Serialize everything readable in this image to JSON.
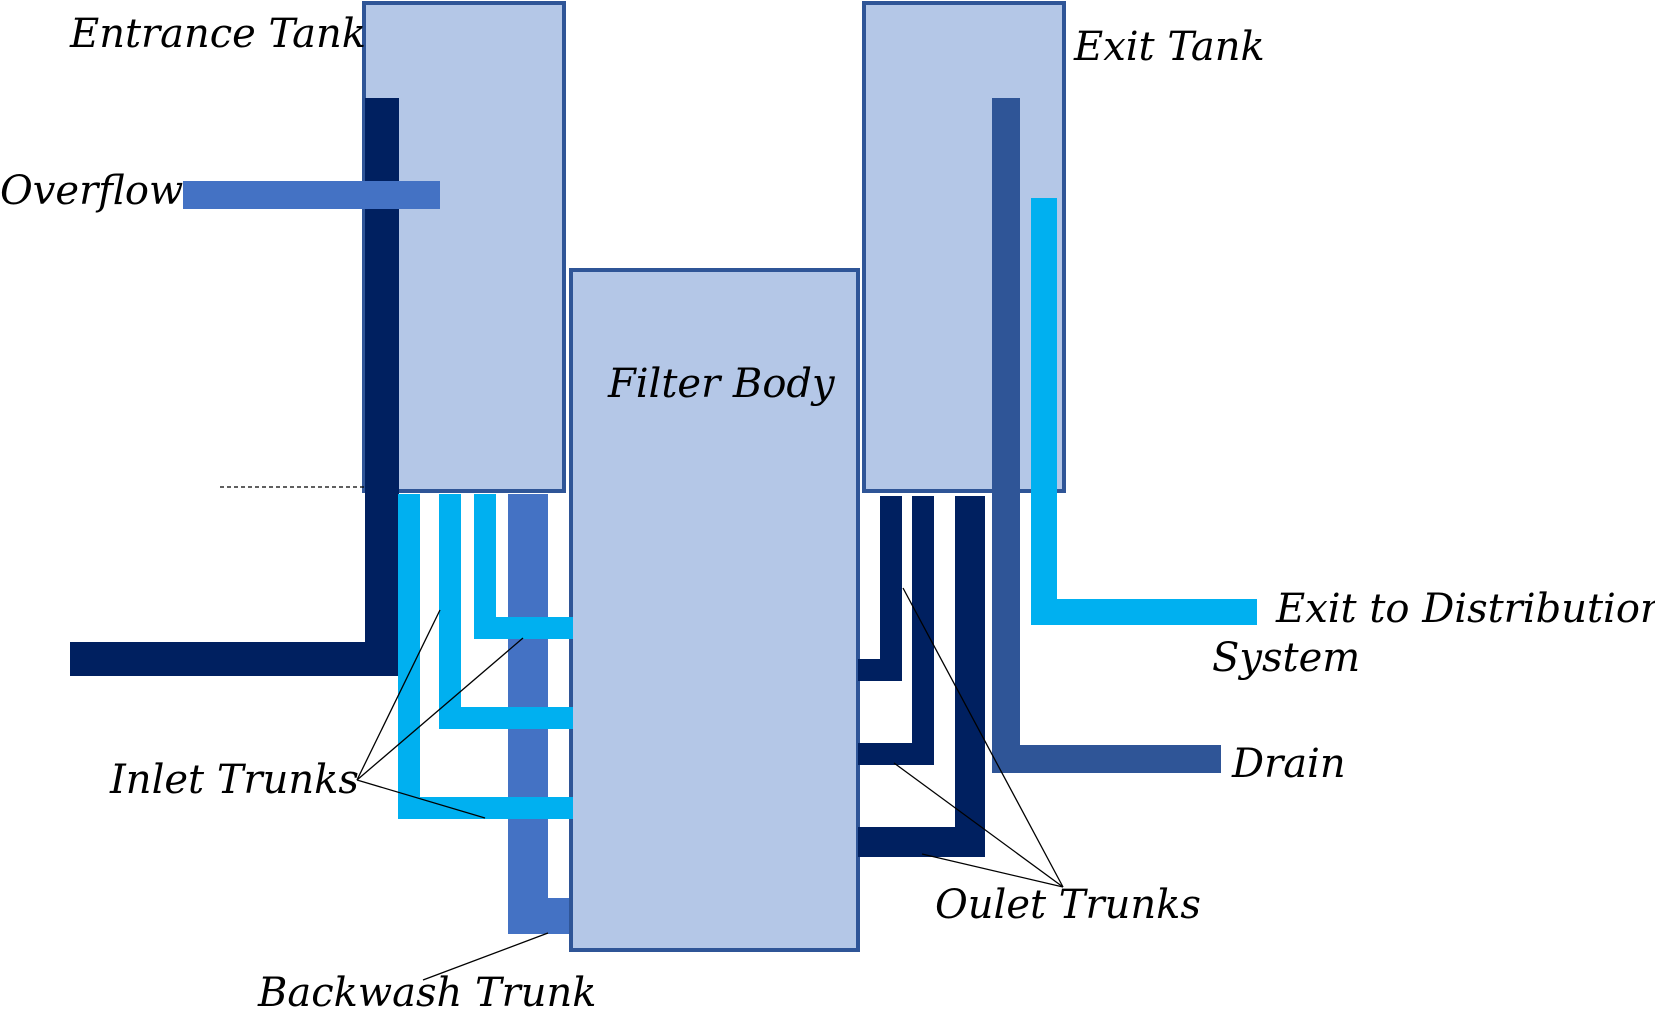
{
  "diagram": {
    "labels": {
      "entrance_tank": "Entrance Tank",
      "exit_tank": "Exit Tank",
      "filter_body": "Filter Body",
      "overflow": "Overflow",
      "inlet_trunks": "Inlet Trunks",
      "backwash_trunk": "Backwash Trunk",
      "exit_to_distribution_line1": "Exit to Distribution",
      "exit_to_distribution_line2": "System",
      "drain": "Drain",
      "outlet_trunks": "Oulet Trunks"
    },
    "colors": {
      "tank_fill": "#b4c7e7",
      "tank_border": "#2f5597",
      "dark_navy": "#002060",
      "medium_blue": "#4472c4",
      "steel_blue": "#2f5597",
      "light_blue": "#00b0f0"
    }
  }
}
